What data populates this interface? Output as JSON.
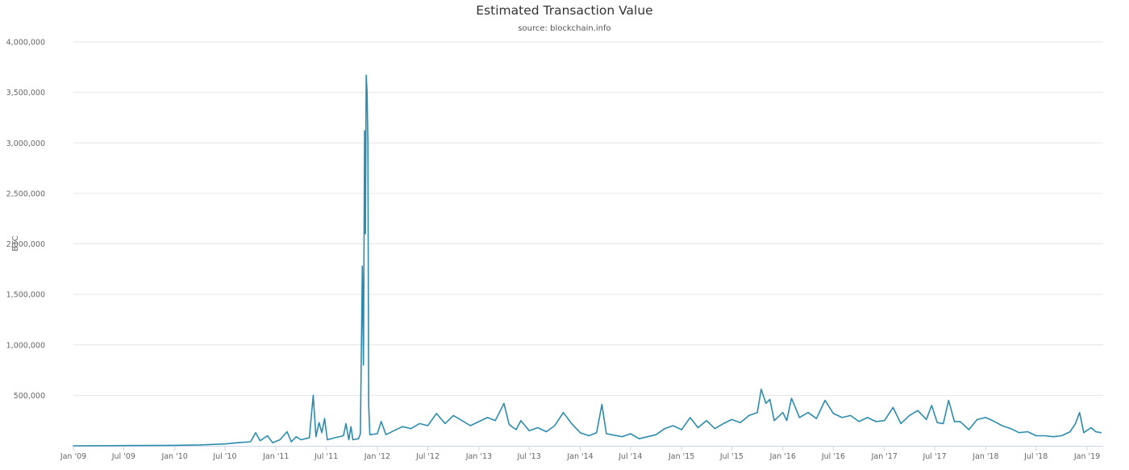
{
  "chart_data": {
    "type": "line",
    "title": "Estimated Transaction Value",
    "subtitle": "source: blockchain.info",
    "ylabel": "BTC",
    "xlabel": "",
    "ylim": [
      0,
      4000000
    ],
    "xlim": [
      "2009-01-01",
      "2019-02-28"
    ],
    "grid": "horizontal",
    "legend": "none",
    "y_ticks": [
      {
        "value": 500000,
        "label": "500,000"
      },
      {
        "value": 1000000,
        "label": "1,000,000"
      },
      {
        "value": 1500000,
        "label": "1,500,000"
      },
      {
        "value": 2000000,
        "label": "2,000,000"
      },
      {
        "value": 2500000,
        "label": "2,500,000"
      },
      {
        "value": 3000000,
        "label": "3,000,000"
      },
      {
        "value": 3500000,
        "label": "3,500,000"
      },
      {
        "value": 4000000,
        "label": "4,000,000"
      }
    ],
    "x_ticks": [
      {
        "date": "2009-01-01",
        "label": "Jan '09"
      },
      {
        "date": "2009-07-01",
        "label": "Jul '09"
      },
      {
        "date": "2010-01-01",
        "label": "Jan '10"
      },
      {
        "date": "2010-07-01",
        "label": "Jul '10"
      },
      {
        "date": "2011-01-01",
        "label": "Jan '11"
      },
      {
        "date": "2011-07-01",
        "label": "Jul '11"
      },
      {
        "date": "2012-01-01",
        "label": "Jan '12"
      },
      {
        "date": "2012-07-01",
        "label": "Jul '12"
      },
      {
        "date": "2013-01-01",
        "label": "Jan '13"
      },
      {
        "date": "2013-07-01",
        "label": "Jul '13"
      },
      {
        "date": "2014-01-01",
        "label": "Jan '14"
      },
      {
        "date": "2014-07-01",
        "label": "Jul '14"
      },
      {
        "date": "2015-01-01",
        "label": "Jan '15"
      },
      {
        "date": "2015-07-01",
        "label": "Jul '15"
      },
      {
        "date": "2016-01-01",
        "label": "Jan '16"
      },
      {
        "date": "2016-07-01",
        "label": "Jul '16"
      },
      {
        "date": "2017-01-01",
        "label": "Jan '17"
      },
      {
        "date": "2017-07-01",
        "label": "Jul '17"
      },
      {
        "date": "2018-01-01",
        "label": "Jan '18"
      },
      {
        "date": "2018-07-01",
        "label": "Jul '18"
      },
      {
        "date": "2019-01-01",
        "label": "Jan '19"
      }
    ],
    "series": [
      {
        "color": "#2b8cad",
        "points": [
          [
            "2009-01-01",
            0
          ],
          [
            "2009-04-01",
            1000
          ],
          [
            "2009-07-01",
            2000
          ],
          [
            "2009-10-01",
            3000
          ],
          [
            "2010-01-01",
            5000
          ],
          [
            "2010-04-01",
            9000
          ],
          [
            "2010-07-01",
            18000
          ],
          [
            "2010-08-15",
            30000
          ],
          [
            "2010-10-01",
            40000
          ],
          [
            "2010-10-20",
            130000
          ],
          [
            "2010-11-05",
            50000
          ],
          [
            "2010-12-01",
            100000
          ],
          [
            "2010-12-20",
            30000
          ],
          [
            "2011-01-15",
            60000
          ],
          [
            "2011-02-10",
            140000
          ],
          [
            "2011-02-25",
            40000
          ],
          [
            "2011-03-15",
            90000
          ],
          [
            "2011-04-01",
            60000
          ],
          [
            "2011-05-01",
            80000
          ],
          [
            "2011-05-15",
            500000
          ],
          [
            "2011-05-25",
            90000
          ],
          [
            "2011-06-05",
            230000
          ],
          [
            "2011-06-15",
            130000
          ],
          [
            "2011-06-25",
            270000
          ],
          [
            "2011-07-05",
            60000
          ],
          [
            "2011-08-01",
            80000
          ],
          [
            "2011-09-01",
            100000
          ],
          [
            "2011-09-10",
            220000
          ],
          [
            "2011-09-20",
            60000
          ],
          [
            "2011-09-28",
            190000
          ],
          [
            "2011-10-05",
            60000
          ],
          [
            "2011-10-25",
            70000
          ],
          [
            "2011-11-01",
            120000
          ],
          [
            "2011-11-08",
            1780000
          ],
          [
            "2011-11-12",
            800000
          ],
          [
            "2011-11-16",
            3120000
          ],
          [
            "2011-11-19",
            2100000
          ],
          [
            "2011-11-22",
            3670000
          ],
          [
            "2011-11-25",
            3500000
          ],
          [
            "2011-11-28",
            3000000
          ],
          [
            "2011-12-01",
            400000
          ],
          [
            "2011-12-05",
            110000
          ],
          [
            "2012-01-01",
            120000
          ],
          [
            "2012-01-15",
            240000
          ],
          [
            "2012-02-01",
            110000
          ],
          [
            "2012-03-01",
            150000
          ],
          [
            "2012-04-01",
            190000
          ],
          [
            "2012-05-01",
            170000
          ],
          [
            "2012-06-01",
            220000
          ],
          [
            "2012-07-01",
            200000
          ],
          [
            "2012-08-01",
            320000
          ],
          [
            "2012-09-01",
            220000
          ],
          [
            "2012-10-01",
            300000
          ],
          [
            "2012-11-01",
            250000
          ],
          [
            "2012-12-01",
            200000
          ],
          [
            "2013-01-01",
            240000
          ],
          [
            "2013-02-01",
            280000
          ],
          [
            "2013-03-01",
            250000
          ],
          [
            "2013-04-01",
            420000
          ],
          [
            "2013-04-20",
            210000
          ],
          [
            "2013-05-15",
            160000
          ],
          [
            "2013-06-01",
            250000
          ],
          [
            "2013-07-01",
            150000
          ],
          [
            "2013-08-01",
            180000
          ],
          [
            "2013-09-01",
            140000
          ],
          [
            "2013-10-01",
            200000
          ],
          [
            "2013-11-01",
            330000
          ],
          [
            "2013-12-01",
            220000
          ],
          [
            "2014-01-01",
            130000
          ],
          [
            "2014-02-01",
            100000
          ],
          [
            "2014-03-01",
            130000
          ],
          [
            "2014-03-20",
            410000
          ],
          [
            "2014-04-05",
            120000
          ],
          [
            "2014-06-01",
            90000
          ],
          [
            "2014-07-01",
            120000
          ],
          [
            "2014-08-01",
            70000
          ],
          [
            "2014-09-01",
            90000
          ],
          [
            "2014-10-01",
            110000
          ],
          [
            "2014-11-01",
            170000
          ],
          [
            "2014-12-01",
            200000
          ],
          [
            "2015-01-01",
            160000
          ],
          [
            "2015-02-01",
            280000
          ],
          [
            "2015-03-01",
            180000
          ],
          [
            "2015-04-01",
            250000
          ],
          [
            "2015-05-01",
            170000
          ],
          [
            "2015-06-01",
            220000
          ],
          [
            "2015-07-01",
            260000
          ],
          [
            "2015-08-01",
            230000
          ],
          [
            "2015-09-01",
            300000
          ],
          [
            "2015-10-01",
            330000
          ],
          [
            "2015-10-15",
            560000
          ],
          [
            "2015-11-01",
            420000
          ],
          [
            "2015-11-15",
            460000
          ],
          [
            "2015-12-01",
            250000
          ],
          [
            "2016-01-01",
            330000
          ],
          [
            "2016-01-15",
            250000
          ],
          [
            "2016-02-01",
            470000
          ],
          [
            "2016-03-01",
            280000
          ],
          [
            "2016-04-01",
            330000
          ],
          [
            "2016-05-01",
            270000
          ],
          [
            "2016-06-01",
            450000
          ],
          [
            "2016-07-01",
            320000
          ],
          [
            "2016-08-01",
            280000
          ],
          [
            "2016-09-01",
            300000
          ],
          [
            "2016-10-01",
            240000
          ],
          [
            "2016-11-01",
            280000
          ],
          [
            "2016-12-01",
            240000
          ],
          [
            "2017-01-01",
            250000
          ],
          [
            "2017-02-01",
            380000
          ],
          [
            "2017-03-01",
            220000
          ],
          [
            "2017-04-01",
            300000
          ],
          [
            "2017-05-01",
            350000
          ],
          [
            "2017-06-01",
            260000
          ],
          [
            "2017-06-20",
            400000
          ],
          [
            "2017-07-10",
            230000
          ],
          [
            "2017-08-01",
            220000
          ],
          [
            "2017-08-20",
            450000
          ],
          [
            "2017-09-10",
            240000
          ],
          [
            "2017-10-01",
            240000
          ],
          [
            "2017-11-01",
            160000
          ],
          [
            "2017-12-01",
            260000
          ],
          [
            "2018-01-01",
            280000
          ],
          [
            "2018-02-01",
            240000
          ],
          [
            "2018-03-01",
            200000
          ],
          [
            "2018-04-01",
            170000
          ],
          [
            "2018-05-01",
            130000
          ],
          [
            "2018-06-01",
            140000
          ],
          [
            "2018-07-01",
            100000
          ],
          [
            "2018-08-01",
            100000
          ],
          [
            "2018-09-01",
            90000
          ],
          [
            "2018-10-01",
            100000
          ],
          [
            "2018-11-01",
            140000
          ],
          [
            "2018-11-20",
            220000
          ],
          [
            "2018-12-05",
            330000
          ],
          [
            "2018-12-20",
            130000
          ],
          [
            "2019-01-15",
            180000
          ],
          [
            "2019-02-01",
            140000
          ],
          [
            "2019-02-20",
            130000
          ]
        ]
      }
    ]
  }
}
